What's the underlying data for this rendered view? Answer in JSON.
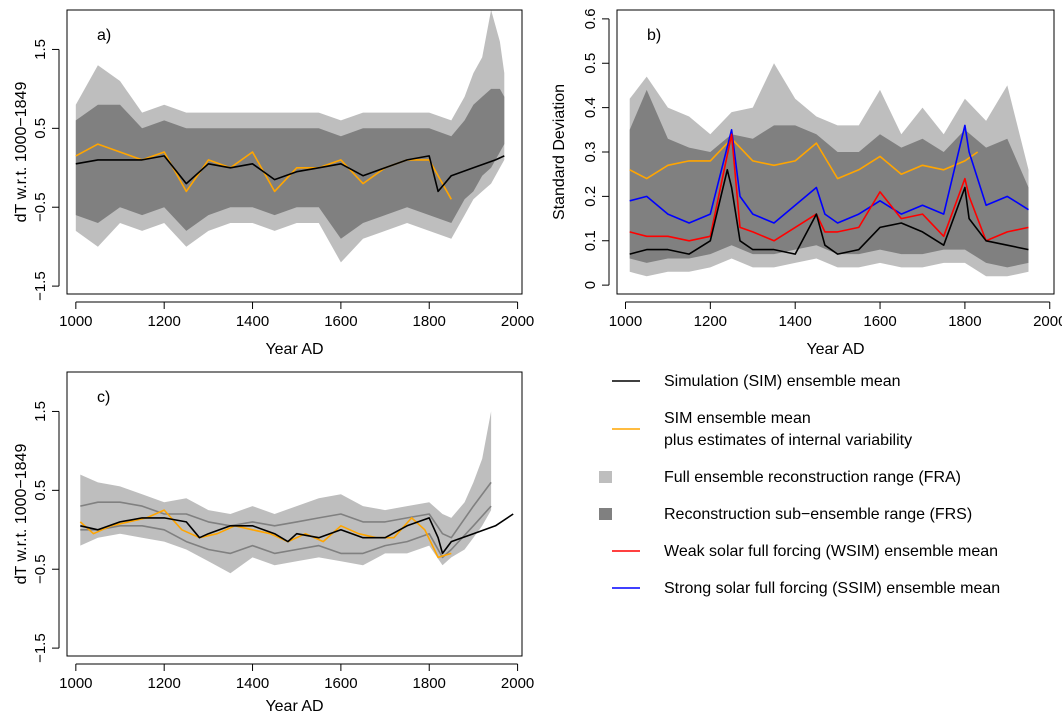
{
  "colors": {
    "sim": "#000000",
    "sim_internal": "#ffa500",
    "fra": "#bebebe",
    "frs": "#808080",
    "wsim": "#ff0000",
    "ssim": "#0000ff"
  },
  "legend": {
    "items": [
      {
        "key": "sim",
        "type": "line",
        "lines": [
          "Simulation (SIM) ensemble mean"
        ]
      },
      {
        "key": "sim_internal",
        "type": "line",
        "lines": [
          "SIM ensemble mean",
          "plus estimates of internal variability"
        ]
      },
      {
        "key": "fra",
        "type": "box",
        "lines": [
          "Full ensemble reconstruction range (FRA)"
        ]
      },
      {
        "key": "frs",
        "type": "box",
        "lines": [
          "Reconstruction sub−ensemble range (FRS)"
        ]
      },
      {
        "key": "wsim",
        "type": "line",
        "lines": [
          "Weak solar full forcing (WSIM) ensemble mean"
        ]
      },
      {
        "key": "ssim",
        "type": "line",
        "lines": [
          "Strong solar full forcing (SSIM) ensemble mean"
        ]
      }
    ]
  },
  "chart_data": [
    {
      "panel": "a)",
      "type": "line",
      "xlabel": "Year AD",
      "ylabel": "dT w.r.t. 1000−1849",
      "xlim": [
        980,
        2010
      ],
      "ylim": [
        -1.6,
        2.0
      ],
      "xticks": [
        1000,
        1200,
        1400,
        1600,
        1800,
        2000
      ],
      "yticks": [
        -1.5,
        -0.5,
        0.5,
        1.5
      ],
      "grid": false,
      "series": [
        {
          "key": "fra",
          "kind": "band",
          "x": [
            1000,
            1050,
            1100,
            1150,
            1200,
            1250,
            1300,
            1350,
            1400,
            1450,
            1500,
            1550,
            1600,
            1650,
            1700,
            1750,
            1800,
            1850,
            1880,
            1900,
            1920,
            1940,
            1960,
            1970
          ],
          "lower": [
            -0.8,
            -1.0,
            -0.7,
            -0.8,
            -0.7,
            -1.0,
            -0.8,
            -0.7,
            -0.7,
            -0.8,
            -0.7,
            -0.7,
            -1.2,
            -0.9,
            -0.8,
            -0.7,
            -0.8,
            -0.9,
            -0.6,
            -0.4,
            -0.3,
            -0.2,
            0.0,
            0.1
          ],
          "upper": [
            0.8,
            1.3,
            1.1,
            0.7,
            0.8,
            0.7,
            0.7,
            0.7,
            0.7,
            0.7,
            0.7,
            0.7,
            0.6,
            0.7,
            0.7,
            0.7,
            0.7,
            0.6,
            0.9,
            1.2,
            1.4,
            2.0,
            1.6,
            1.2
          ]
        },
        {
          "key": "frs",
          "kind": "band",
          "x": [
            1000,
            1050,
            1100,
            1150,
            1200,
            1250,
            1300,
            1350,
            1400,
            1450,
            1500,
            1550,
            1600,
            1650,
            1700,
            1750,
            1800,
            1850,
            1880,
            1900,
            1920,
            1940,
            1960,
            1970
          ],
          "lower": [
            -0.6,
            -0.7,
            -0.5,
            -0.6,
            -0.5,
            -0.8,
            -0.6,
            -0.5,
            -0.5,
            -0.6,
            -0.5,
            -0.5,
            -0.9,
            -0.7,
            -0.6,
            -0.5,
            -0.6,
            -0.7,
            -0.4,
            -0.3,
            -0.1,
            0.0,
            0.2,
            0.3
          ],
          "upper": [
            0.6,
            0.8,
            0.8,
            0.5,
            0.6,
            0.5,
            0.5,
            0.5,
            0.5,
            0.5,
            0.5,
            0.5,
            0.4,
            0.5,
            0.5,
            0.5,
            0.5,
            0.4,
            0.6,
            0.8,
            0.9,
            1.0,
            1.0,
            0.9
          ]
        },
        {
          "key": "sim_internal",
          "kind": "line",
          "x": [
            1000,
            1050,
            1100,
            1150,
            1200,
            1250,
            1300,
            1350,
            1400,
            1450,
            1500,
            1550,
            1600,
            1650,
            1700,
            1750,
            1800,
            1850
          ],
          "y": [
            0.15,
            0.3,
            0.2,
            0.1,
            0.2,
            -0.3,
            0.1,
            0.0,
            0.2,
            -0.3,
            0.0,
            0.0,
            0.1,
            -0.2,
            0.0,
            0.1,
            0.1,
            -0.4
          ]
        },
        {
          "key": "sim",
          "kind": "line",
          "x": [
            1000,
            1050,
            1100,
            1150,
            1200,
            1250,
            1300,
            1350,
            1400,
            1450,
            1500,
            1550,
            1600,
            1650,
            1700,
            1750,
            1800,
            1820,
            1850,
            1900,
            1950,
            1970
          ],
          "y": [
            0.05,
            0.1,
            0.1,
            0.1,
            0.15,
            -0.2,
            0.05,
            0.0,
            0.05,
            -0.15,
            -0.05,
            0.0,
            0.05,
            -0.1,
            0.0,
            0.1,
            0.15,
            -0.3,
            -0.1,
            0.0,
            0.1,
            0.15
          ]
        }
      ]
    },
    {
      "panel": "b)",
      "type": "line",
      "xlabel": "Year AD",
      "ylabel": "Standard Deviation",
      "xlim": [
        980,
        2010
      ],
      "ylim": [
        -0.02,
        0.62
      ],
      "xticks": [
        1000,
        1200,
        1400,
        1600,
        1800,
        2000
      ],
      "yticks": [
        0.0,
        0.1,
        0.2,
        0.3,
        0.4,
        0.5,
        0.6
      ],
      "grid": false,
      "series": [
        {
          "key": "fra",
          "kind": "band",
          "x": [
            1010,
            1050,
            1100,
            1150,
            1200,
            1250,
            1300,
            1350,
            1400,
            1450,
            1500,
            1550,
            1600,
            1650,
            1700,
            1750,
            1800,
            1850,
            1900,
            1950
          ],
          "lower": [
            0.03,
            0.02,
            0.03,
            0.03,
            0.04,
            0.06,
            0.04,
            0.04,
            0.05,
            0.06,
            0.04,
            0.04,
            0.05,
            0.04,
            0.04,
            0.05,
            0.05,
            0.02,
            0.02,
            0.03
          ],
          "upper": [
            0.42,
            0.47,
            0.4,
            0.38,
            0.34,
            0.39,
            0.4,
            0.5,
            0.42,
            0.38,
            0.36,
            0.36,
            0.44,
            0.34,
            0.4,
            0.34,
            0.42,
            0.37,
            0.45,
            0.26
          ]
        },
        {
          "key": "frs",
          "kind": "band",
          "x": [
            1010,
            1050,
            1100,
            1150,
            1200,
            1250,
            1300,
            1350,
            1400,
            1450,
            1500,
            1550,
            1600,
            1650,
            1700,
            1750,
            1800,
            1850,
            1900,
            1950
          ],
          "lower": [
            0.06,
            0.05,
            0.06,
            0.06,
            0.07,
            0.09,
            0.07,
            0.07,
            0.08,
            0.09,
            0.07,
            0.07,
            0.08,
            0.07,
            0.07,
            0.08,
            0.08,
            0.05,
            0.04,
            0.05
          ],
          "upper": [
            0.35,
            0.44,
            0.33,
            0.31,
            0.3,
            0.34,
            0.33,
            0.36,
            0.36,
            0.34,
            0.3,
            0.3,
            0.34,
            0.31,
            0.33,
            0.3,
            0.35,
            0.31,
            0.33,
            0.22
          ]
        },
        {
          "key": "sim_internal",
          "kind": "line",
          "x": [
            1010,
            1050,
            1100,
            1150,
            1200,
            1250,
            1300,
            1350,
            1400,
            1450,
            1500,
            1550,
            1600,
            1650,
            1700,
            1750,
            1800,
            1830
          ],
          "y": [
            0.26,
            0.24,
            0.27,
            0.28,
            0.28,
            0.33,
            0.28,
            0.27,
            0.28,
            0.32,
            0.24,
            0.26,
            0.29,
            0.25,
            0.27,
            0.26,
            0.28,
            0.3
          ]
        },
        {
          "key": "ssim",
          "kind": "line",
          "x": [
            1010,
            1050,
            1100,
            1150,
            1200,
            1250,
            1270,
            1300,
            1350,
            1400,
            1450,
            1470,
            1500,
            1550,
            1600,
            1650,
            1700,
            1750,
            1800,
            1810,
            1850,
            1900,
            1950
          ],
          "y": [
            0.19,
            0.2,
            0.16,
            0.14,
            0.16,
            0.35,
            0.2,
            0.16,
            0.14,
            0.18,
            0.22,
            0.16,
            0.14,
            0.16,
            0.19,
            0.16,
            0.18,
            0.16,
            0.36,
            0.3,
            0.18,
            0.2,
            0.17
          ]
        },
        {
          "key": "wsim",
          "kind": "line",
          "x": [
            1010,
            1050,
            1100,
            1150,
            1200,
            1250,
            1270,
            1300,
            1350,
            1400,
            1450,
            1470,
            1500,
            1550,
            1600,
            1650,
            1700,
            1750,
            1800,
            1810,
            1850,
            1900,
            1950
          ],
          "y": [
            0.12,
            0.11,
            0.11,
            0.1,
            0.11,
            0.34,
            0.13,
            0.12,
            0.1,
            0.13,
            0.16,
            0.12,
            0.12,
            0.13,
            0.21,
            0.15,
            0.16,
            0.11,
            0.24,
            0.2,
            0.1,
            0.12,
            0.13
          ]
        },
        {
          "key": "sim",
          "kind": "line",
          "x": [
            1010,
            1050,
            1100,
            1150,
            1200,
            1240,
            1250,
            1270,
            1300,
            1350,
            1400,
            1450,
            1470,
            1500,
            1550,
            1600,
            1650,
            1700,
            1750,
            1800,
            1810,
            1850,
            1900,
            1950
          ],
          "y": [
            0.07,
            0.08,
            0.08,
            0.07,
            0.1,
            0.26,
            0.22,
            0.1,
            0.08,
            0.08,
            0.07,
            0.16,
            0.09,
            0.07,
            0.08,
            0.13,
            0.14,
            0.12,
            0.09,
            0.22,
            0.15,
            0.1,
            0.09,
            0.08
          ]
        }
      ]
    },
    {
      "panel": "c)",
      "type": "line",
      "xlabel": "Year AD",
      "ylabel": "dT w.r.t. 1000−1849",
      "xlim": [
        980,
        2010
      ],
      "ylim": [
        -1.6,
        2.0
      ],
      "xticks": [
        1000,
        1200,
        1400,
        1600,
        1800,
        2000
      ],
      "yticks": [
        -1.5,
        -0.5,
        0.5,
        1.5
      ],
      "grid": false,
      "series": [
        {
          "key": "fra",
          "kind": "band",
          "x": [
            1010,
            1050,
            1100,
            1150,
            1200,
            1250,
            1300,
            1350,
            1400,
            1450,
            1500,
            1550,
            1600,
            1650,
            1700,
            1750,
            1800,
            1830,
            1850,
            1880,
            1900,
            1920,
            1940
          ],
          "lower": [
            -0.2,
            -0.1,
            -0.05,
            -0.1,
            -0.15,
            -0.25,
            -0.4,
            -0.55,
            -0.35,
            -0.45,
            -0.4,
            -0.35,
            -0.4,
            -0.45,
            -0.3,
            -0.3,
            -0.2,
            -0.45,
            -0.35,
            -0.25,
            -0.1,
            0.05,
            0.25
          ],
          "upper": [
            0.7,
            0.6,
            0.55,
            0.45,
            0.35,
            0.4,
            0.25,
            0.2,
            0.3,
            0.2,
            0.3,
            0.4,
            0.45,
            0.3,
            0.25,
            0.3,
            0.35,
            0.2,
            0.15,
            0.35,
            0.6,
            0.9,
            1.5
          ]
        },
        {
          "key": "frs",
          "kind": "line",
          "x": [
            1010,
            1050,
            1100,
            1150,
            1200,
            1250,
            1300,
            1350,
            1400,
            1450,
            1500,
            1550,
            1600,
            1650,
            1700,
            1750,
            1800,
            1830,
            1850,
            1900,
            1940
          ],
          "y": [
            0.3,
            0.35,
            0.35,
            0.3,
            0.2,
            0.2,
            0.1,
            0.05,
            0.1,
            0.05,
            0.1,
            0.15,
            0.2,
            0.1,
            0.1,
            0.15,
            0.2,
            -0.05,
            -0.1,
            0.3,
            0.6
          ]
        },
        {
          "key": "frs",
          "kind": "line",
          "x": [
            1010,
            1050,
            1100,
            1150,
            1200,
            1250,
            1300,
            1350,
            1400,
            1450,
            1500,
            1550,
            1600,
            1650,
            1700,
            1750,
            1800,
            1830,
            1850,
            1900,
            1940
          ],
          "y": [
            0.0,
            0.0,
            0.05,
            0.05,
            0.0,
            -0.15,
            -0.25,
            -0.3,
            -0.2,
            -0.3,
            -0.25,
            -0.2,
            -0.3,
            -0.3,
            -0.2,
            -0.15,
            -0.05,
            -0.35,
            -0.25,
            0.05,
            0.3
          ]
        },
        {
          "key": "sim_internal",
          "kind": "line",
          "x": [
            1010,
            1040,
            1080,
            1120,
            1160,
            1200,
            1240,
            1280,
            1320,
            1360,
            1400,
            1440,
            1480,
            1520,
            1560,
            1600,
            1640,
            1680,
            1720,
            1760,
            1790,
            1820,
            1850
          ],
          "y": [
            0.1,
            -0.05,
            0.05,
            0.1,
            0.15,
            0.25,
            0.0,
            -0.1,
            -0.05,
            0.05,
            0.0,
            -0.05,
            -0.15,
            -0.05,
            -0.15,
            0.05,
            -0.05,
            -0.1,
            -0.1,
            0.15,
            0.0,
            -0.35,
            -0.3
          ]
        },
        {
          "key": "sim",
          "kind": "line",
          "x": [
            1010,
            1050,
            1100,
            1150,
            1200,
            1250,
            1280,
            1300,
            1350,
            1400,
            1450,
            1480,
            1500,
            1550,
            1600,
            1650,
            1700,
            1750,
            1800,
            1820,
            1830,
            1850,
            1900,
            1950,
            1990
          ],
          "y": [
            0.05,
            0.0,
            0.1,
            0.15,
            0.15,
            0.1,
            -0.1,
            -0.05,
            0.05,
            0.05,
            -0.05,
            -0.15,
            -0.05,
            -0.1,
            0.0,
            -0.1,
            -0.1,
            0.05,
            0.15,
            -0.1,
            -0.3,
            -0.15,
            -0.05,
            0.05,
            0.2
          ]
        }
      ]
    }
  ]
}
